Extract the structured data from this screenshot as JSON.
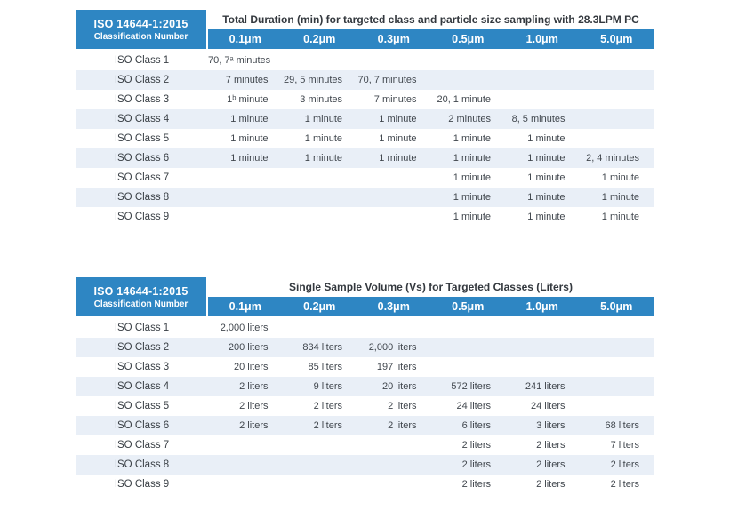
{
  "colors": {
    "header_blue": "#2E86C3",
    "row_stripe": "#E9EFF7",
    "cell_text": "#41474E",
    "title_text": "#33383E"
  },
  "tables": [
    {
      "corner_line1": "ISO 14644-1:2015",
      "corner_line2": "Classification Number",
      "title": "Total Duration (min) for targeted class and particle size sampling with 28.3LPM PC",
      "columns": [
        "0.1μm",
        "0.2μm",
        "0.3μm",
        "0.5μm",
        "1.0μm",
        "5.0μm"
      ],
      "rows": [
        {
          "label": "ISO Class 1",
          "cells": [
            "70, 7ᵃ minutes",
            "",
            "",
            "",
            "",
            ""
          ]
        },
        {
          "label": "ISO Class 2",
          "cells": [
            "7 minutes",
            "29, 5 minutes",
            "70, 7 minutes",
            "",
            "",
            ""
          ]
        },
        {
          "label": "ISO Class 3",
          "cells": [
            "1ᵇ minute",
            "3 minutes",
            "7 minutes",
            "20, 1 minute",
            "",
            ""
          ]
        },
        {
          "label": "ISO Class 4",
          "cells": [
            "1 minute",
            "1 minute",
            "1 minute",
            "2 minutes",
            "8, 5 minutes",
            ""
          ]
        },
        {
          "label": "ISO Class 5",
          "cells": [
            "1 minute",
            "1 minute",
            "1 minute",
            "1 minute",
            "1 minute",
            ""
          ]
        },
        {
          "label": "ISO Class 6",
          "cells": [
            "1 minute",
            "1 minute",
            "1 minute",
            "1 minute",
            "1 minute",
            "2, 4 minutes"
          ]
        },
        {
          "label": "ISO Class 7",
          "cells": [
            "",
            "",
            "",
            "1 minute",
            "1 minute",
            "1 minute"
          ]
        },
        {
          "label": "ISO Class 8",
          "cells": [
            "",
            "",
            "",
            "1 minute",
            "1 minute",
            "1 minute"
          ]
        },
        {
          "label": "ISO Class 9",
          "cells": [
            "",
            "",
            "",
            "1 minute",
            "1 minute",
            "1 minute"
          ]
        }
      ]
    },
    {
      "corner_line1": "ISO 14644-1:2015",
      "corner_line2": "Classification Number",
      "title": "Single Sample Volume (Vs) for Targeted Classes (Liters)",
      "columns": [
        "0.1μm",
        "0.2μm",
        "0.3μm",
        "0.5μm",
        "1.0μm",
        "5.0μm"
      ],
      "rows": [
        {
          "label": "ISO Class 1",
          "cells": [
            "2,000 liters",
            "",
            "",
            "",
            "",
            ""
          ]
        },
        {
          "label": "ISO Class 2",
          "cells": [
            "200 liters",
            "834 liters",
            "2,000 liters",
            "",
            "",
            ""
          ]
        },
        {
          "label": "ISO Class 3",
          "cells": [
            "20 liters",
            "85 liters",
            "197 liters",
            "",
            "",
            ""
          ]
        },
        {
          "label": "ISO Class 4",
          "cells": [
            "2 liters",
            "9 liters",
            "20 liters",
            "572 liters",
            "241 liters",
            ""
          ]
        },
        {
          "label": "ISO Class 5",
          "cells": [
            "2 liters",
            "2 liters",
            "2 liters",
            "24 liters",
            "24 liters",
            ""
          ]
        },
        {
          "label": "ISO Class 6",
          "cells": [
            "2 liters",
            "2 liters",
            "2 liters",
            "6 liters",
            "3 liters",
            "68 liters"
          ]
        },
        {
          "label": "ISO Class 7",
          "cells": [
            "",
            "",
            "",
            "2 liters",
            "2 liters",
            "7 liters"
          ]
        },
        {
          "label": "ISO Class 8",
          "cells": [
            "",
            "",
            "",
            "2 liters",
            "2 liters",
            "2 liters"
          ]
        },
        {
          "label": "ISO Class 9",
          "cells": [
            "",
            "",
            "",
            "2 liters",
            "2 liters",
            "2 liters"
          ]
        }
      ]
    }
  ]
}
